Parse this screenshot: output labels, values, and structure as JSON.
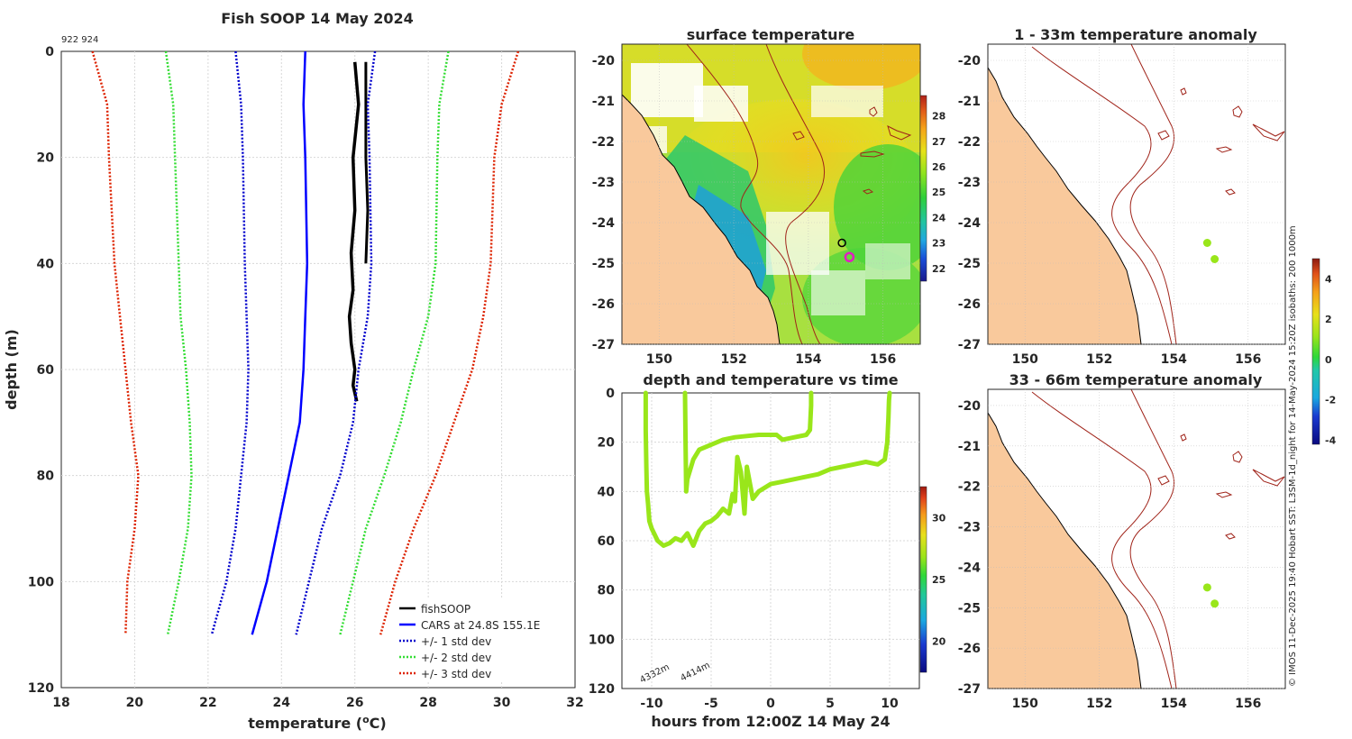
{
  "figure_title": "Fish SOOP 14 May 2024",
  "ids_label": "922 924",
  "side_note": "© IMOS 11-Dec-2025 19:40 Hobart SST: L3SM-1d_night for 14-May-2024 15:20Z isobaths: 200  1000m",
  "colors": {
    "fish": "#000000",
    "cars": "#0000ff",
    "std1": "#0000cc",
    "std2": "#33dd33",
    "std3": "#dd2200",
    "land": "#f9c99c",
    "isobath": "#a0241a",
    "trace": "#99e61a",
    "sst_pink": "#e020c0"
  },
  "chart_data": [
    {
      "type": "line",
      "id": "profile",
      "title": "Fish SOOP 14 May 2024",
      "xlabel": "temperature (°C)",
      "xlabel_text": "temperature (",
      "xlabel_sup": "o",
      "xlabel_unit": "C)",
      "ylabel": "depth (m)",
      "xlim": [
        18,
        32
      ],
      "ylim": [
        0,
        120
      ],
      "xticks": [
        "18",
        "20",
        "22",
        "24",
        "26",
        "28",
        "30",
        "32"
      ],
      "yticks": [
        "0",
        "20",
        "40",
        "60",
        "80",
        "100",
        "120"
      ],
      "legend": [
        "fishSOOP",
        "CARS at 24.8S 155.1E",
        "+/- 1 std dev",
        "+/- 2 std dev",
        "+/- 3 std dev"
      ],
      "series": [
        {
          "name": "fishSOOP",
          "x": [
            26.0,
            26.1,
            25.95,
            26.0,
            25.9,
            25.95,
            25.85,
            25.9,
            26.0,
            25.95,
            26.05
          ],
          "y": [
            2,
            10,
            20,
            30,
            38,
            45,
            50,
            55,
            60,
            63,
            66
          ]
        },
        {
          "name": "fishSOOP cast 2",
          "x": [
            26.3,
            26.3,
            26.3,
            26.35,
            26.3
          ],
          "y": [
            2,
            10,
            20,
            30,
            40
          ]
        },
        {
          "name": "CARS at 24.8S 155.1E",
          "x": [
            24.65,
            24.6,
            24.65,
            24.7,
            24.65,
            24.6,
            24.5,
            24.2,
            23.9,
            23.6,
            23.2
          ],
          "y": [
            0,
            10,
            20,
            40,
            50,
            60,
            70,
            80,
            90,
            100,
            110
          ]
        },
        {
          "name": "+/- 1 std dev low",
          "x": [
            22.75,
            22.9,
            22.95,
            23.0,
            23.05,
            23.1,
            23.05,
            22.9,
            22.75,
            22.5,
            22.1
          ],
          "y": [
            0,
            10,
            20,
            40,
            50,
            60,
            70,
            80,
            90,
            100,
            110
          ]
        },
        {
          "name": "+/- 1 std dev high",
          "x": [
            26.55,
            26.35,
            26.4,
            26.45,
            26.35,
            26.1,
            25.95,
            25.6,
            25.1,
            24.75,
            24.4
          ],
          "y": [
            0,
            10,
            20,
            40,
            50,
            60,
            70,
            80,
            90,
            100,
            110
          ]
        },
        {
          "name": "+/- 2 std dev low",
          "x": [
            20.85,
            21.05,
            21.1,
            21.2,
            21.25,
            21.4,
            21.5,
            21.55,
            21.45,
            21.2,
            20.9
          ],
          "y": [
            0,
            10,
            20,
            40,
            50,
            60,
            70,
            80,
            90,
            100,
            110
          ]
        },
        {
          "name": "+/- 2 std dev high",
          "x": [
            28.55,
            28.3,
            28.25,
            28.2,
            28.0,
            27.6,
            27.25,
            26.8,
            26.3,
            25.95,
            25.6
          ],
          "y": [
            0,
            10,
            20,
            40,
            50,
            60,
            70,
            80,
            90,
            100,
            110
          ]
        },
        {
          "name": "+/- 3 std dev low",
          "x": [
            18.85,
            19.25,
            19.3,
            19.45,
            19.6,
            19.75,
            19.9,
            20.1,
            20.0,
            19.8,
            19.75
          ],
          "y": [
            0,
            10,
            20,
            40,
            50,
            60,
            70,
            80,
            90,
            100,
            110
          ]
        },
        {
          "name": "+/- 3 std dev high",
          "x": [
            30.45,
            30.0,
            29.8,
            29.7,
            29.5,
            29.2,
            28.7,
            28.2,
            27.6,
            27.1,
            26.7
          ],
          "y": [
            0,
            10,
            20,
            40,
            50,
            60,
            70,
            80,
            90,
            100,
            110
          ]
        }
      ]
    },
    {
      "type": "heatmap",
      "id": "sst",
      "title": "surface temperature",
      "xlim": [
        149,
        157
      ],
      "ylim": [
        -27,
        -19.6
      ],
      "xticks": [
        "150",
        "152",
        "154",
        "156"
      ],
      "yticks": [
        "-20",
        "-21",
        "-22",
        "-23",
        "-24",
        "-25",
        "-26",
        "-27"
      ],
      "colorbar_ticks": [
        "22",
        "23",
        "24",
        "25",
        "26",
        "27",
        "28"
      ],
      "colorbar_range": [
        21.5,
        28.8
      ],
      "markers": [
        {
          "lon": 154.9,
          "lat": -24.5,
          "color": "black"
        },
        {
          "lon": 155.1,
          "lat": -24.85,
          "color": "magenta"
        }
      ]
    },
    {
      "type": "heatmap",
      "id": "anom1",
      "title": "1 - 33m temperature anomaly",
      "xlim": [
        149,
        157
      ],
      "ylim": [
        -27,
        -19.6
      ],
      "xticks": [
        "150",
        "152",
        "154",
        "156"
      ],
      "yticks": [
        "-20",
        "-21",
        "-22",
        "-23",
        "-24",
        "-25",
        "-26",
        "-27"
      ],
      "colorbar_ticks": [
        "-4",
        "-2",
        "0",
        "2",
        "4"
      ],
      "colorbar_range": [
        -4.2,
        5.0
      ],
      "markers": [
        {
          "lon": 154.9,
          "lat": -24.5,
          "value": 1.3
        },
        {
          "lon": 155.1,
          "lat": -24.9,
          "value": 1.3
        }
      ]
    },
    {
      "type": "heatmap",
      "id": "anom2",
      "title": "33 - 66m temperature anomaly",
      "xlim": [
        149,
        157
      ],
      "ylim": [
        -27,
        -19.6
      ],
      "xticks": [
        "150",
        "152",
        "154",
        "156"
      ],
      "yticks": [
        "-20",
        "-21",
        "-22",
        "-23",
        "-24",
        "-25",
        "-26",
        "-27"
      ],
      "markers": [
        {
          "lon": 154.9,
          "lat": -24.5,
          "value": 1.3
        },
        {
          "lon": 155.1,
          "lat": -24.9,
          "value": 1.3
        }
      ]
    },
    {
      "type": "line",
      "id": "timeseries",
      "title": "depth and temperature vs time",
      "xlabel": "hours from 12:00Z 14 May 24",
      "xlim": [
        -12.5,
        12.5
      ],
      "ylim": [
        0,
        120
      ],
      "xticks": [
        "-10",
        "-5",
        "0",
        "5",
        "10"
      ],
      "yticks": [
        "0",
        "20",
        "40",
        "60",
        "80",
        "100",
        "120"
      ],
      "colorbar_ticks": [
        "20",
        "25",
        "30"
      ],
      "colorbar_range": [
        17.5,
        32.5
      ],
      "annotations": [
        "4332m",
        "4414m"
      ],
      "series": [
        {
          "name": "cast 1",
          "x": [
            -10.5,
            -10.5,
            -10.45,
            -10.4,
            -10.3,
            -10.2,
            -10.0,
            -9.5,
            -9.0,
            -8.5,
            -8.0,
            -7.5,
            -7.0,
            -6.5,
            -6.0,
            -5.5,
            -5.0,
            -4.5,
            -4.0,
            -3.5,
            -3.2,
            -3.0,
            -2.8,
            -2.5,
            -2.2,
            -2.0,
            -1.5,
            -1.0,
            0.0,
            1.0,
            2.0,
            3.0,
            4.0,
            5.0,
            6.0,
            7.0,
            8.0,
            9.0,
            9.6,
            9.8,
            9.9,
            9.95,
            10.0
          ],
          "y": [
            0,
            15,
            30,
            40,
            45,
            52,
            55,
            60,
            62,
            61,
            59,
            60,
            57,
            62,
            56,
            53,
            52,
            50,
            47,
            49,
            41,
            44,
            26,
            32,
            49,
            30,
            43,
            40,
            37,
            36,
            35,
            34,
            33,
            31,
            30,
            29,
            28,
            29,
            27,
            20,
            10,
            3,
            0
          ]
        },
        {
          "name": "cast 2",
          "x": [
            -7.2,
            -7.15,
            -7.1,
            -7.0,
            -6.5,
            -6.0,
            -5.0,
            -4.0,
            -3.0,
            -2.0,
            -1.0,
            0.0,
            0.5,
            1.0,
            2.0,
            3.0,
            3.3,
            3.4,
            3.4
          ],
          "y": [
            0,
            20,
            40,
            35,
            27,
            23,
            21,
            19,
            18,
            17.5,
            17,
            17,
            17,
            19,
            18,
            17,
            15,
            5,
            0
          ]
        }
      ]
    }
  ]
}
